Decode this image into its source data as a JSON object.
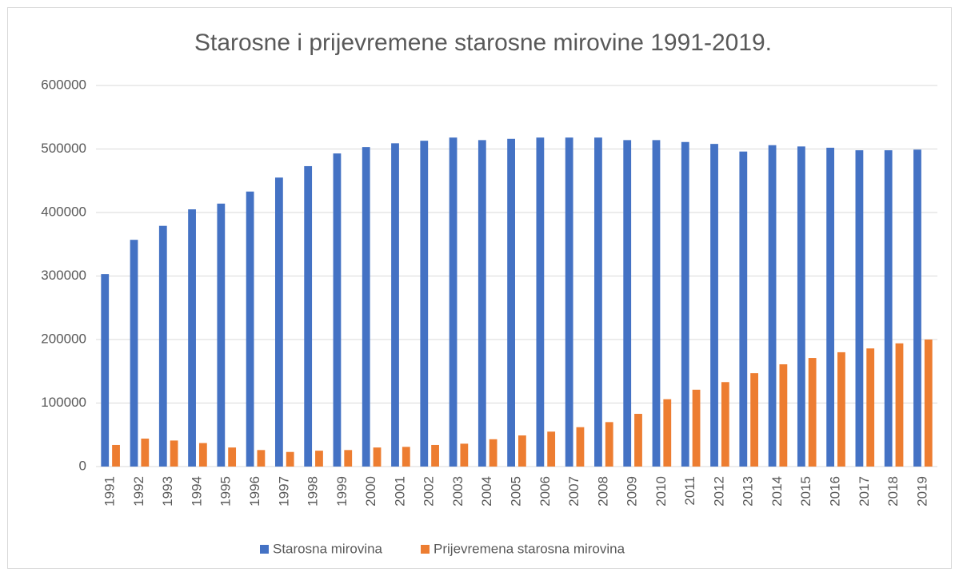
{
  "chart_data": {
    "type": "bar",
    "title": "Starosne i prijevremene starosne mirovine 1991-2019.",
    "categories": [
      "1991",
      "1992",
      "1993",
      "1994",
      "1995",
      "1996",
      "1997",
      "1998",
      "1999",
      "2000",
      "2001",
      "2002",
      "2003",
      "2004",
      "2005",
      "2006",
      "2007",
      "2008",
      "2009",
      "2010",
      "2011",
      "2012",
      "2013",
      "2014",
      "2015",
      "2016",
      "2017",
      "2018",
      "2019"
    ],
    "series": [
      {
        "name": "Starosna mirovina",
        "color": "#4472c4",
        "values": [
          303000,
          357000,
          379000,
          405000,
          414000,
          433000,
          455000,
          473000,
          493000,
          503000,
          509000,
          513000,
          518000,
          514000,
          516000,
          518000,
          518000,
          518000,
          514000,
          514000,
          511000,
          508000,
          496000,
          506000,
          504000,
          502000,
          498000,
          498000,
          499000
        ]
      },
      {
        "name": "Prijevremena starosna mirovina",
        "color": "#ed7d31",
        "values": [
          34000,
          44000,
          41000,
          37000,
          30000,
          26000,
          23000,
          25000,
          26000,
          30000,
          31000,
          34000,
          36000,
          43000,
          49000,
          55000,
          62000,
          70000,
          83000,
          106000,
          121000,
          133000,
          147000,
          161000,
          171000,
          180000,
          186000,
          194000,
          200000
        ]
      }
    ],
    "ylim": [
      0,
      600000
    ],
    "yticks": [
      0,
      100000,
      200000,
      300000,
      400000,
      500000,
      600000
    ],
    "grid": true,
    "legend": "bottom"
  }
}
